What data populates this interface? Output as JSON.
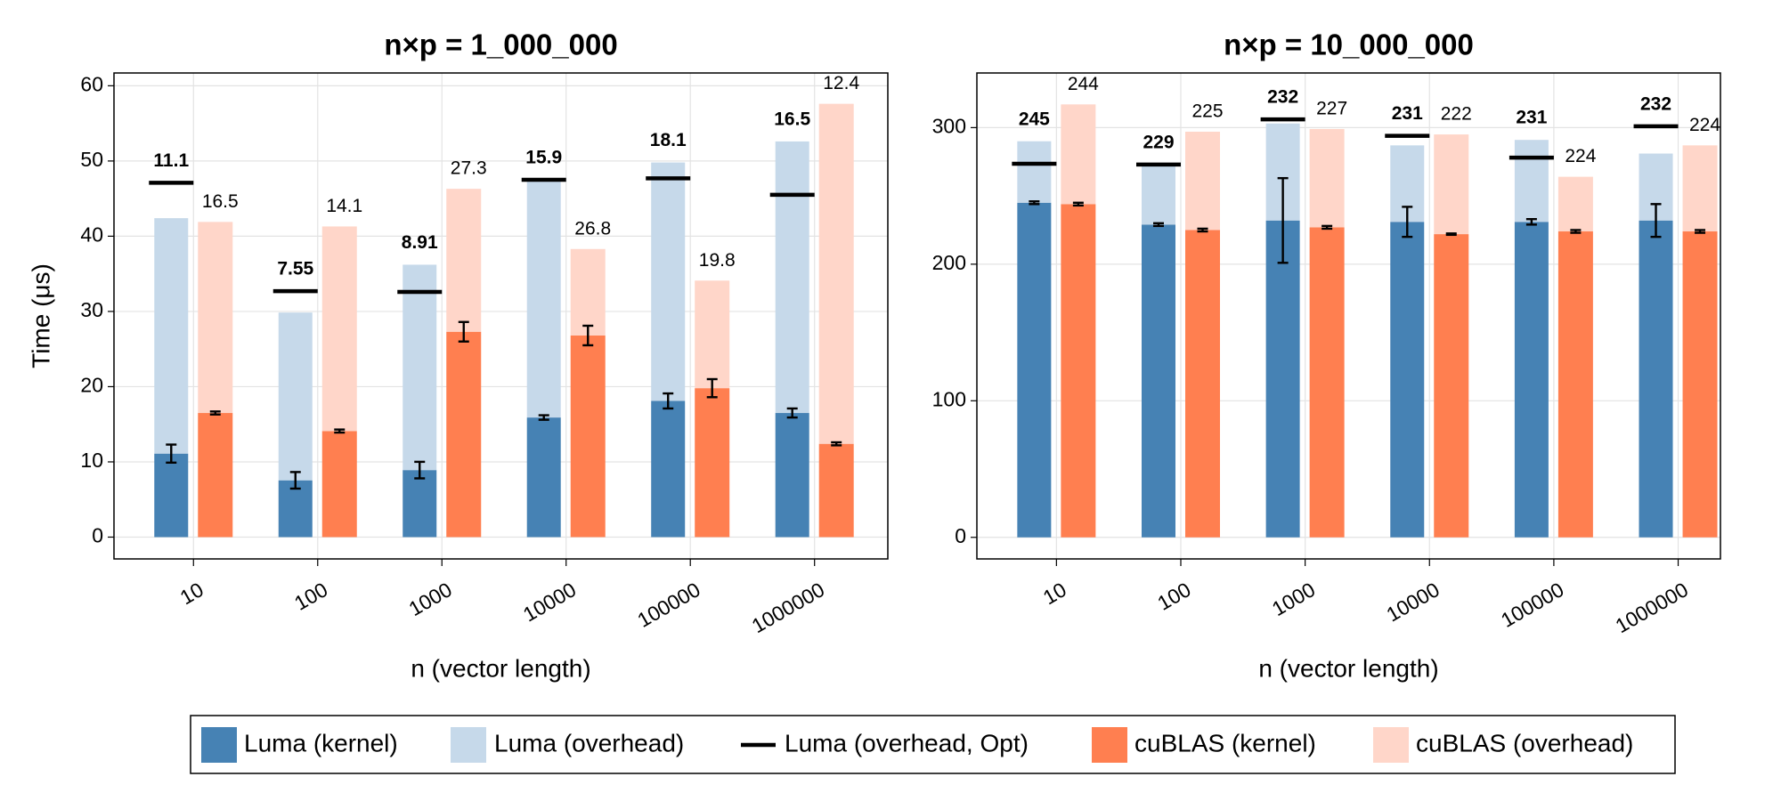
{
  "chart_data": [
    {
      "type": "bar",
      "title": "n×p = 1_000_000",
      "x_label": "n (vector length)",
      "y_label": "Time (μs)",
      "categories": [
        "10",
        "100",
        "1000",
        "10000",
        "100000",
        "1000000"
      ],
      "ylim": [
        -2.9,
        61.7
      ],
      "yticks": [
        0,
        10,
        20,
        30,
        40,
        50,
        60
      ],
      "grid": true,
      "series": [
        {
          "name": "Luma (kernel)",
          "color": "#4682b4",
          "values": [
            11.1,
            7.55,
            8.91,
            15.9,
            18.1,
            16.5
          ],
          "errors": [
            1.2,
            1.1,
            1.1,
            0.3,
            1.0,
            0.6
          ]
        },
        {
          "name": "Luma (overhead)",
          "color": "#c6d9ea",
          "values": [
            31.3,
            22.3,
            27.3,
            31.5,
            31.7,
            36.1
          ]
        },
        {
          "name": "Luma (overhead, Opt)",
          "color": "#000000",
          "values": [
            47.1,
            32.7,
            32.6,
            47.5,
            47.7,
            45.5
          ]
        },
        {
          "name": "cuBLAS (kernel)",
          "color": "#ff7f50",
          "values": [
            16.5,
            14.1,
            27.3,
            26.8,
            19.8,
            12.4
          ],
          "errors": [
            0.2,
            0.2,
            1.3,
            1.3,
            1.2,
            0.2
          ]
        },
        {
          "name": "cuBLAS (overhead)",
          "color": "#ffd6c9",
          "values": [
            25.4,
            27.2,
            19.0,
            11.5,
            14.3,
            45.2
          ]
        }
      ]
    },
    {
      "type": "bar",
      "title": "n×p = 10_000_000",
      "x_label": "n (vector length)",
      "categories": [
        "10",
        "100",
        "1000",
        "10000",
        "100000",
        "1000000"
      ],
      "ylim": [
        -15.8,
        340
      ],
      "yticks": [
        0,
        100,
        200,
        300
      ],
      "grid": true,
      "series": [
        {
          "color": "#4682b4",
          "values": [
            245,
            229,
            232,
            231,
            231,
            232
          ],
          "errors": [
            1,
            1,
            31,
            11,
            2,
            12
          ]
        },
        {
          "color": "#c6d9ea",
          "values": [
            45,
            43,
            71,
            56,
            60,
            49
          ]
        },
        {
          "color": "#000000",
          "values": [
            273.5,
            273,
            306,
            294,
            278,
            301
          ]
        },
        {
          "color": "#ff7f50",
          "values": [
            244,
            225,
            227,
            222,
            224,
            224
          ],
          "errors": [
            1,
            1,
            1,
            0.5,
            1,
            1
          ]
        },
        {
          "color": "#ffd6c9",
          "values": [
            73,
            72,
            72,
            73,
            40,
            63
          ]
        }
      ]
    }
  ]
}
